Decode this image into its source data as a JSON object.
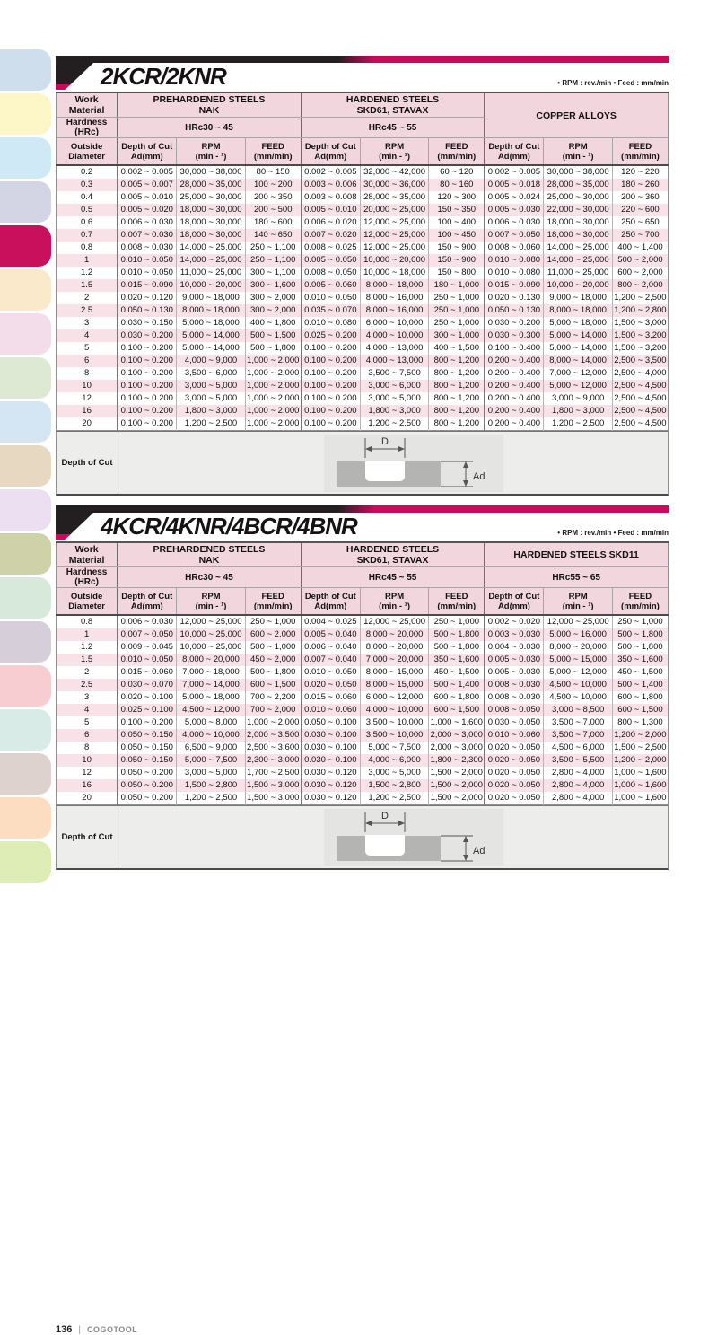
{
  "page": {
    "footer_page": "136",
    "footer_brand": "COGOTOOL"
  },
  "sidebar": {
    "active_index": 4,
    "tabs": [
      {
        "color": "#cfdeed"
      },
      {
        "color": "#fdf6c6"
      },
      {
        "color": "#cfe9f6"
      },
      {
        "color": "#d3d5e4"
      },
      {
        "color": "#c9105c"
      },
      {
        "color": "#fbe9cc"
      },
      {
        "color": "#f3ddeb"
      },
      {
        "color": "#dee9d4"
      },
      {
        "color": "#d4e6f4"
      },
      {
        "color": "#e6d8c1"
      },
      {
        "color": "#ecdff1"
      },
      {
        "color": "#cfd2a9"
      },
      {
        "color": "#d6e9da"
      },
      {
        "color": "#d6cfda"
      },
      {
        "color": "#f7cdd1"
      },
      {
        "color": "#d9ebe7"
      },
      {
        "color": "#ded2ce"
      },
      {
        "color": "#fcddc1"
      },
      {
        "color": "#deedb6"
      }
    ],
    "accent_color": "#cb0a5b"
  },
  "tables": [
    {
      "title": "2KCR/2KNR",
      "note": "• RPM : rev./min • Feed : mm/min",
      "header": {
        "work_material_label": "Work Material",
        "hardness_label": "Hardness (HRc)",
        "outside_diameter_label": "Outside\nDiameter",
        "col_ad": "Depth of Cut\nAd(mm)",
        "col_rpm": "RPM\n(min - ¹)",
        "col_feed": "FEED\n(mm/min)",
        "groups": [
          {
            "material": "PREHARDENED STEELS\nNAK",
            "hardness": "HRc30 ~ 45"
          },
          {
            "material": "HARDENED STEELS\nSKD61, STAVAX",
            "hardness": "HRc45 ~ 55"
          },
          {
            "material": "COPPER ALLOYS",
            "hardness": ""
          }
        ]
      },
      "rows": [
        [
          "0.2",
          "0.002 ~ 0.005",
          "30,000 ~ 38,000",
          "80 ~ 150",
          "0.002 ~ 0.005",
          "32,000 ~ 42,000",
          "60 ~ 120",
          "0.002 ~ 0.005",
          "30,000 ~ 38,000",
          "120 ~ 220"
        ],
        [
          "0.3",
          "0.005 ~ 0.007",
          "28,000 ~ 35,000",
          "100 ~ 200",
          "0.003 ~ 0.006",
          "30,000 ~ 36,000",
          "80 ~ 160",
          "0.005 ~ 0.018",
          "28,000 ~ 35,000",
          "180 ~ 260"
        ],
        [
          "0.4",
          "0.005 ~ 0.010",
          "25,000 ~ 30,000",
          "200 ~ 350",
          "0.003 ~ 0.008",
          "28,000 ~ 35,000",
          "120 ~ 300",
          "0.005 ~ 0.024",
          "25,000 ~ 30,000",
          "200 ~ 360"
        ],
        [
          "0.5",
          "0.005 ~ 0.020",
          "18,000 ~ 30,000",
          "200 ~ 500",
          "0.005 ~ 0.010",
          "20,000 ~ 25,000",
          "150 ~ 350",
          "0.005 ~ 0.030",
          "22,000 ~ 30,000",
          "220 ~ 600"
        ],
        [
          "0.6",
          "0.006 ~ 0.030",
          "18,000 ~ 30,000",
          "180 ~ 600",
          "0.006 ~ 0.020",
          "12,000 ~ 25,000",
          "100 ~ 400",
          "0.006 ~ 0.030",
          "18,000 ~ 30,000",
          "250 ~ 650"
        ],
        [
          "0.7",
          "0.007 ~ 0.030",
          "18,000 ~ 30,000",
          "140 ~ 650",
          "0.007 ~ 0.020",
          "12,000 ~ 25,000",
          "100 ~ 450",
          "0.007 ~ 0.050",
          "18,000 ~ 30,000",
          "250 ~ 700"
        ],
        [
          "0.8",
          "0.008 ~ 0.030",
          "14,000 ~ 25,000",
          "250 ~ 1,100",
          "0.008 ~ 0.025",
          "12,000 ~ 25,000",
          "150 ~ 900",
          "0.008 ~ 0.060",
          "14,000 ~ 25,000",
          "400 ~ 1,400"
        ],
        [
          "1",
          "0.010 ~ 0.050",
          "14,000 ~ 25,000",
          "250 ~ 1,100",
          "0.005 ~ 0.050",
          "10,000 ~ 20,000",
          "150 ~ 900",
          "0.010 ~ 0.080",
          "14,000 ~ 25,000",
          "500 ~ 2,000"
        ],
        [
          "1.2",
          "0.010 ~ 0.050",
          "11,000 ~ 25,000",
          "300 ~ 1,100",
          "0.008 ~ 0.050",
          "10,000 ~ 18,000",
          "150 ~ 800",
          "0.010 ~ 0.080",
          "11,000 ~ 25,000",
          "600 ~ 2,000"
        ],
        [
          "1.5",
          "0.015 ~ 0.090",
          "10,000 ~ 20,000",
          "300 ~ 1,600",
          "0.005 ~ 0.060",
          "8,000 ~ 18,000",
          "180 ~ 1,000",
          "0.015 ~ 0.090",
          "10,000 ~ 20,000",
          "800 ~ 2,000"
        ],
        [
          "2",
          "0.020 ~ 0.120",
          "9,000 ~ 18,000",
          "300 ~ 2,000",
          "0.010 ~ 0.050",
          "8,000 ~ 16,000",
          "250 ~ 1,000",
          "0.020 ~ 0.130",
          "9,000 ~ 18,000",
          "1,200 ~ 2,500"
        ],
        [
          "2.5",
          "0.050 ~ 0.130",
          "8,000 ~ 18,000",
          "300 ~ 2,000",
          "0.035 ~ 0.070",
          "8,000 ~ 16,000",
          "250 ~ 1,000",
          "0.050 ~ 0.130",
          "8,000 ~ 18,000",
          "1,200 ~ 2,800"
        ],
        [
          "3",
          "0.030 ~ 0.150",
          "5,000 ~ 18,000",
          "400 ~ 1,800",
          "0.010 ~ 0.080",
          "6,000 ~ 10,000",
          "250 ~ 1,000",
          "0.030 ~ 0.200",
          "5,000 ~ 18,000",
          "1,500 ~ 3,000"
        ],
        [
          "4",
          "0.030 ~ 0.200",
          "5,000 ~ 14,000",
          "500 ~ 1,500",
          "0.025 ~ 0.200",
          "4,000 ~ 10,000",
          "300 ~ 1,000",
          "0.030 ~ 0.300",
          "5,000 ~ 14,000",
          "1,500 ~ 3,200"
        ],
        [
          "5",
          "0.100 ~ 0.200",
          "5,000 ~ 14,000",
          "500 ~ 1,800",
          "0.100 ~ 0.200",
          "4,000 ~ 13,000",
          "400 ~ 1,500",
          "0.100 ~ 0.400",
          "5,000 ~ 14,000",
          "1,500 ~ 3,200"
        ],
        [
          "6",
          "0.100 ~ 0.200",
          "4,000 ~ 9,000",
          "1,000 ~ 2,000",
          "0.100 ~ 0.200",
          "4,000 ~ 13,000",
          "800 ~ 1,200",
          "0.200 ~ 0.400",
          "8,000 ~ 14,000",
          "2,500 ~ 3,500"
        ],
        [
          "8",
          "0.100 ~ 0.200",
          "3,500 ~ 6,000",
          "1,000 ~ 2,000",
          "0.100 ~ 0.200",
          "3,500 ~ 7,500",
          "800 ~ 1,200",
          "0.200 ~ 0.400",
          "7,000 ~ 12,000",
          "2,500 ~ 4,000"
        ],
        [
          "10",
          "0.100 ~ 0.200",
          "3,000 ~ 5,000",
          "1,000 ~ 2,000",
          "0.100 ~ 0.200",
          "3,000 ~ 6,000",
          "800 ~ 1,200",
          "0.200 ~ 0.400",
          "5,000 ~ 12,000",
          "2,500 ~ 4,500"
        ],
        [
          "12",
          "0.100 ~ 0.200",
          "3,000 ~ 5,000",
          "1,000 ~ 2,000",
          "0.100 ~ 0.200",
          "3,000 ~ 5,000",
          "800 ~ 1,200",
          "0.200 ~ 0.400",
          "3,000 ~ 9,000",
          "2,500 ~ 4,500"
        ],
        [
          "16",
          "0.100 ~ 0.200",
          "1,800 ~ 3,000",
          "1,000 ~ 2,000",
          "0.100 ~ 0.200",
          "1,800 ~ 3,000",
          "800 ~ 1,200",
          "0.200 ~ 0.400",
          "1,800 ~ 3,000",
          "2,500 ~ 4,500"
        ],
        [
          "20",
          "0.100 ~ 0.200",
          "1,200 ~ 2,500",
          "1,000 ~ 2,000",
          "0.100 ~ 0.200",
          "1,200 ~ 2,500",
          "800 ~ 1,200",
          "0.200 ~ 0.400",
          "1,200 ~ 2,500",
          "2,500 ~ 4,500"
        ]
      ],
      "depth_label": "Depth of Cut",
      "diagram": {
        "d_label": "D",
        "ad_label": "Ad"
      }
    },
    {
      "title": "4KCR/4KNR/4BCR/4BNR",
      "note": "• RPM : rev./min • Feed : mm/min",
      "header": {
        "work_material_label": "Work Material",
        "hardness_label": "Hardness (HRc)",
        "outside_diameter_label": "Outside\nDiameter",
        "col_ad": "Depth of Cut\nAd(mm)",
        "col_rpm": "RPM\n(min - ¹)",
        "col_feed": "FEED\n(mm/min)",
        "groups": [
          {
            "material": "PREHARDENED STEELS\nNAK",
            "hardness": "HRc30 ~ 45"
          },
          {
            "material": "HARDENED STEELS\nSKD61, STAVAX",
            "hardness": "HRc45 ~ 55"
          },
          {
            "material": "HARDENED STEELS SKD11",
            "hardness": "HRc55 ~ 65"
          }
        ]
      },
      "rows": [
        [
          "0.8",
          "0.006 ~ 0.030",
          "12,000 ~ 25,000",
          "250 ~ 1,000",
          "0.004 ~ 0.025",
          "12,000 ~ 25,000",
          "250 ~ 1,000",
          "0.002 ~ 0.020",
          "12,000 ~ 25,000",
          "250 ~ 1,000"
        ],
        [
          "1",
          "0.007 ~ 0.050",
          "10,000 ~ 25,000",
          "600 ~ 2,000",
          "0.005 ~ 0.040",
          "8,000 ~ 20,000",
          "500 ~ 1,800",
          "0.003 ~ 0.030",
          "5,000 ~ 16,000",
          "500 ~ 1,800"
        ],
        [
          "1.2",
          "0.009 ~ 0.045",
          "10,000 ~ 25,000",
          "500 ~ 1,000",
          "0.006 ~ 0.040",
          "8,000 ~ 20,000",
          "500 ~ 1,800",
          "0.004 ~ 0.030",
          "8,000 ~ 20,000",
          "500 ~ 1,800"
        ],
        [
          "1.5",
          "0.010 ~ 0.050",
          "8,000 ~ 20,000",
          "450 ~ 2,000",
          "0.007 ~ 0.040",
          "7,000 ~ 20,000",
          "350 ~ 1,600",
          "0.005 ~ 0.030",
          "5,000 ~ 15,000",
          "350 ~ 1,600"
        ],
        [
          "2",
          "0.015 ~ 0.060",
          "7,000 ~ 18,000",
          "500 ~ 1,800",
          "0.010 ~ 0.050",
          "8,000 ~ 15,000",
          "450 ~ 1,500",
          "0.005 ~ 0.030",
          "5,000 ~ 12,000",
          "450 ~ 1,500"
        ],
        [
          "2.5",
          "0.030 ~ 0.070",
          "7,000 ~ 14,000",
          "600 ~ 1,500",
          "0.020 ~ 0.050",
          "8,000 ~ 15,000",
          "500 ~ 1,400",
          "0.008 ~ 0.030",
          "4,500 ~ 10,000",
          "500 ~ 1,400"
        ],
        [
          "3",
          "0.020 ~ 0.100",
          "5,000 ~ 18,000",
          "700 ~ 2,200",
          "0.015 ~ 0.060",
          "6,000 ~ 12,000",
          "600 ~ 1,800",
          "0.008 ~ 0.030",
          "4,500 ~ 10,000",
          "600 ~ 1,800"
        ],
        [
          "4",
          "0.025 ~ 0.100",
          "4,500 ~ 12,000",
          "700 ~ 2,000",
          "0.010 ~ 0.060",
          "4,000 ~ 10,000",
          "600 ~ 1,500",
          "0.008 ~ 0.050",
          "3,000 ~ 8,500",
          "600 ~ 1,500"
        ],
        [
          "5",
          "0.100 ~ 0.200",
          "5,000 ~ 8,000",
          "1,000 ~ 2,000",
          "0.050 ~ 0.100",
          "3,500 ~ 10,000",
          "1,000 ~ 1,600",
          "0.030 ~ 0.050",
          "3,500 ~ 7,000",
          "800 ~ 1,300"
        ],
        [
          "6",
          "0.050 ~ 0.150",
          "4,000 ~ 10,000",
          "2,000 ~ 3,500",
          "0.030 ~ 0.100",
          "3,500 ~ 10,000",
          "2,000 ~ 3,000",
          "0.010 ~ 0.060",
          "3,500 ~ 7,000",
          "1,200 ~ 2,000"
        ],
        [
          "8",
          "0.050 ~ 0.150",
          "6,500 ~ 9,000",
          "2,500 ~ 3,600",
          "0.030 ~ 0.100",
          "5,000 ~ 7,500",
          "2,000 ~ 3,000",
          "0.020 ~ 0.050",
          "4,500 ~ 6,000",
          "1,500 ~ 2,500"
        ],
        [
          "10",
          "0.050 ~ 0.150",
          "5,000 ~ 7,500",
          "2,300 ~ 3,000",
          "0.030 ~ 0.100",
          "4,000 ~ 6,000",
          "1,800 ~ 2,300",
          "0.020 ~ 0.050",
          "3,500 ~ 5,500",
          "1,200 ~ 2,000"
        ],
        [
          "12",
          "0.050 ~ 0.200",
          "3,000 ~ 5,000",
          "1,700 ~ 2,500",
          "0.030 ~ 0.120",
          "3,000 ~ 5,000",
          "1,500 ~ 2,000",
          "0.020 ~ 0.050",
          "2,800 ~ 4,000",
          "1,000 ~ 1,600"
        ],
        [
          "16",
          "0.050 ~ 0.200",
          "1,500 ~ 2,800",
          "1,500 ~ 3,000",
          "0.030 ~ 0.120",
          "1,500 ~ 2,800",
          "1,500 ~ 2,000",
          "0.020 ~ 0.050",
          "2,800 ~ 4,000",
          "1,000 ~ 1,600"
        ],
        [
          "20",
          "0.050 ~ 0.200",
          "1,200 ~ 2,500",
          "1,500 ~ 3,000",
          "0.030 ~ 0.120",
          "1,200 ~ 2,500",
          "1,500 ~ 2,000",
          "0.020 ~ 0.050",
          "2,800 ~ 4,000",
          "1,000 ~ 1,600"
        ]
      ],
      "depth_label": "Depth of Cut",
      "diagram": {
        "d_label": "D",
        "ad_label": "Ad"
      }
    }
  ]
}
